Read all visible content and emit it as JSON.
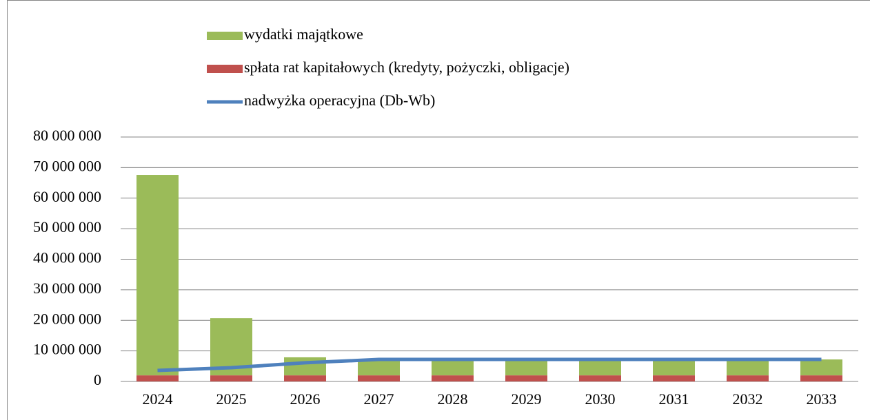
{
  "chart_data": {
    "type": "stacked-bar-line",
    "categories": [
      "2024",
      "2025",
      "2026",
      "2027",
      "2028",
      "2029",
      "2030",
      "2031",
      "2032",
      "2033"
    ],
    "series": [
      {
        "name": "wydatki majątkowe",
        "kind": "bar",
        "color": "#9bbb59",
        "values": [
          65600000,
          18700000,
          5900000,
          5200000,
          5200000,
          5200000,
          5200000,
          5200000,
          5200000,
          5200000
        ]
      },
      {
        "name": "spłata rat kapitałowych (kredyty, pożyczki, obligacje)",
        "kind": "bar",
        "color": "#c0504d",
        "values": [
          2000000,
          2000000,
          2000000,
          2000000,
          2000000,
          2000000,
          2000000,
          2000000,
          2000000,
          2000000
        ]
      },
      {
        "name": "nadwyżka operacyjna (Db-Wb)",
        "kind": "line",
        "color": "#4f81bd",
        "values": [
          3600000,
          4500000,
          6100000,
          7200000,
          7200000,
          7200000,
          7200000,
          7200000,
          7200000,
          7200000
        ]
      }
    ],
    "ylim": [
      0,
      80000000
    ],
    "yticks": [
      0,
      {
        "value": 10000000,
        "label": "10 000 000"
      },
      {
        "value": 20000000,
        "label": "20 000 000"
      },
      {
        "value": 30000000,
        "label": "30 000 000"
      },
      {
        "value": 40000000,
        "label": "40 000 000"
      },
      {
        "value": 50000000,
        "label": "50 000 000"
      },
      {
        "value": 60000000,
        "label": "60 000 000"
      },
      {
        "value": 70000000,
        "label": "70 000 000"
      },
      {
        "value": 80000000,
        "label": "80 000 000"
      }
    ],
    "grid": true
  }
}
